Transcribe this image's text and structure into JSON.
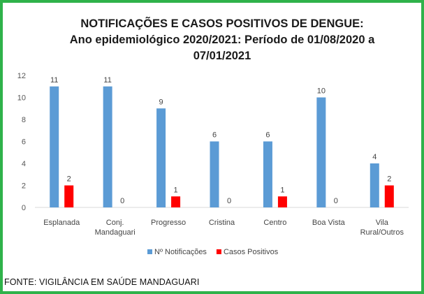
{
  "title_lines": [
    "NOTIFICAÇÕES E CASOS POSITIVOS DE DENGUE:",
    "Ano epidemiológico 2020/2021: Período de 01/08/2020 a",
    "07/01/2021"
  ],
  "source": "FONTE: VIGILÂNCIA EM SAÚDE MANDAGUARI",
  "colors": {
    "border": "#2fb24a",
    "notificacoes": "#5b9bd5",
    "positivos": "#ff0000"
  },
  "chart_data": {
    "type": "bar",
    "title": "NOTIFICAÇÕES E CASOS POSITIVOS DE DENGUE: Ano epidemiológico 2020/2021: Período de 01/08/2020 a 07/01/2021",
    "categories": [
      [
        "Esplanada"
      ],
      [
        "Conj.",
        "Mandaguari"
      ],
      [
        "Progresso"
      ],
      [
        "Cristina"
      ],
      [
        "Centro"
      ],
      [
        "Boa Vista"
      ],
      [
        "Vila",
        "Rural/Outros"
      ]
    ],
    "series": [
      {
        "name": "Nº Notificações",
        "values": [
          11,
          11,
          9,
          6,
          6,
          10,
          4
        ]
      },
      {
        "name": "Casos Positivos",
        "values": [
          2,
          0,
          1,
          0,
          1,
          0,
          2
        ]
      }
    ],
    "ylim": [
      0,
      12
    ],
    "yticks": [
      0,
      2,
      4,
      6,
      8,
      10,
      12
    ],
    "xlabel": "",
    "ylabel": "",
    "grid": false,
    "legend": "bottom"
  }
}
